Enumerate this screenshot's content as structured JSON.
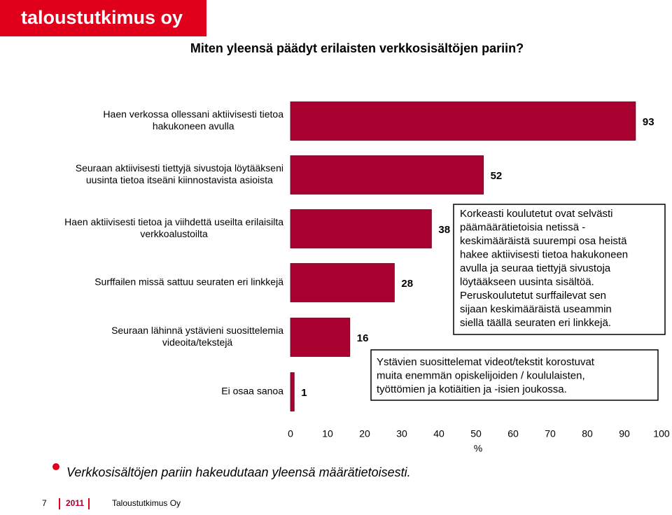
{
  "header": {
    "logo": "taloustutkimus oy"
  },
  "chart_data": {
    "type": "bar",
    "orientation": "horizontal",
    "title": "Miten yleensä päädyt erilaisten verkkosisältöjen pariin?",
    "categories": [
      [
        "Haen verkossa ollessani aktiivisesti tietoa",
        "hakukoneen avulla"
      ],
      [
        "Seuraan aktiivisesti tiettyjä sivustoja löytääkseni",
        "uusinta tietoa itseäni kiinnostavista asioista"
      ],
      [
        "Haen aktiivisesti tietoa ja viihdettä useilta erilaisilta",
        "verkkoalustoilta"
      ],
      [
        "Surffailen missä sattuu seuraten eri linkkejä"
      ],
      [
        "Seuraan lähinnä ystävieni suosittelemia",
        "videoita/tekstejä"
      ],
      [
        "Ei osaa sanoa"
      ]
    ],
    "values": [
      93,
      52,
      38,
      28,
      16,
      1
    ],
    "color": "#a8002f",
    "xlim": [
      0,
      100
    ],
    "xticks": [
      0,
      10,
      20,
      30,
      40,
      50,
      60,
      70,
      80,
      90,
      100
    ],
    "xlabel": "%",
    "annotations": [
      [
        "Korkeasti koulutetut ovat selvästi",
        "päämäärätietoisia netissä -",
        "keskimääräistä suurempi osa heistä",
        "hakee aktiivisesti tietoa hakukoneen",
        "avulla ja seuraa tiettyjä sivustoja",
        "löytääkseen uusinta sisältöä.",
        "Peruskoulutetut surffailevat sen",
        "sijaan keskimääräistä useammin",
        "siellä täällä seuraten eri linkkejä."
      ],
      [
        "Ystävien suosittelemat videot/tekstit korostuvat",
        "muita enemmän opiskelijoiden / koululaisten,",
        "työttömien ja kotiäitien ja -isien joukossa."
      ]
    ]
  },
  "conclusion": "Verkkosisältöjen pariin hakeudutaan yleensä määrätietoisesti.",
  "footer": {
    "page": "7",
    "year": "2011",
    "company": "Taloustutkimus Oy"
  }
}
